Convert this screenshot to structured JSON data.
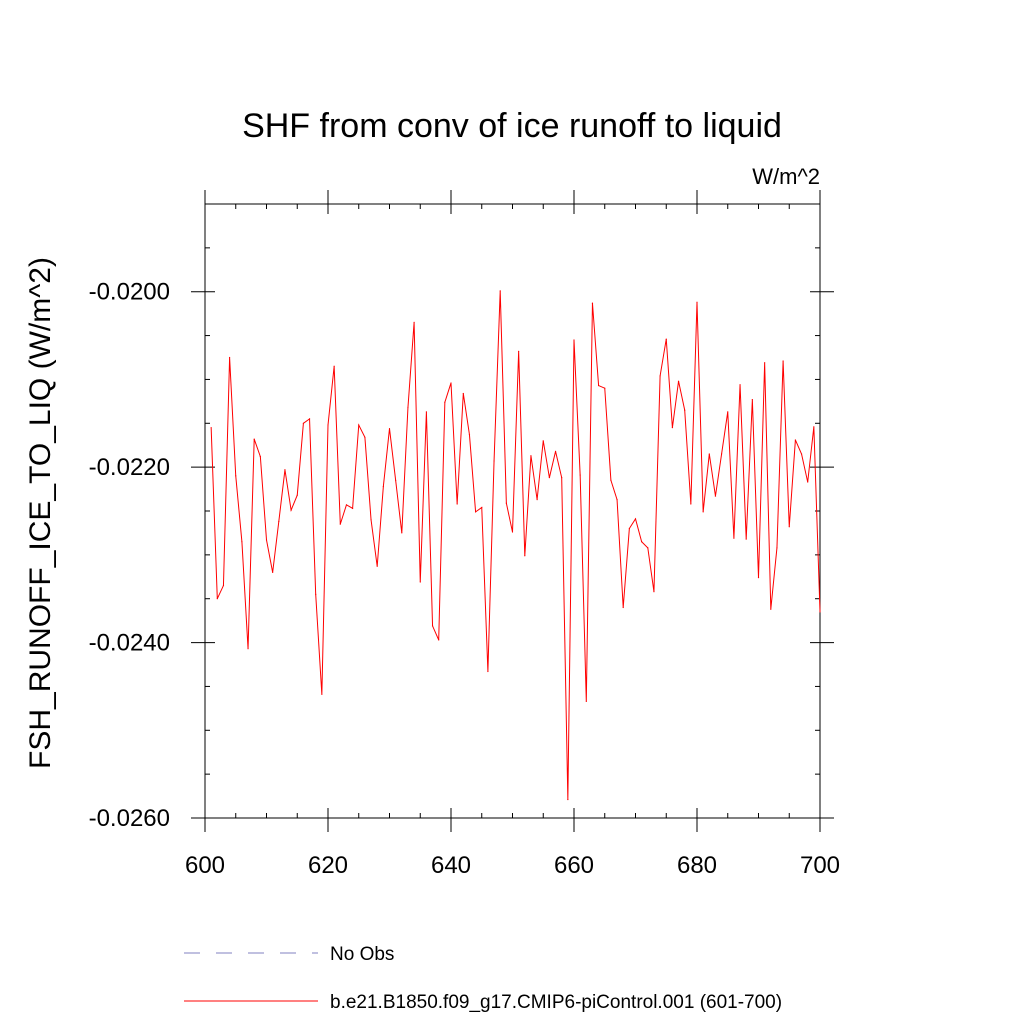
{
  "chart_data": {
    "type": "line",
    "title": "SHF from conv of ice runoff to liquid",
    "units": "W/m^2",
    "xlabel": "",
    "ylabel": "FSH_RUNOFF_ICE_TO_LIQ  (W/m^2)",
    "xlim": [
      600,
      700
    ],
    "ylim": [
      -0.026,
      -0.019
    ],
    "x_ticks": [
      600,
      620,
      640,
      660,
      680,
      700
    ],
    "x_tick_labels": [
      "600",
      "620",
      "640",
      "660",
      "680",
      "700"
    ],
    "x_minor_step": 5,
    "y_ticks": [
      -0.026,
      -0.024,
      -0.022,
      -0.02
    ],
    "y_tick_labels": [
      "-0.0260",
      "-0.0240",
      "-0.0220",
      "-0.0200"
    ],
    "y_minor_step": 0.0005,
    "grid": false,
    "legend_position": "bottom",
    "series": [
      {
        "name": "No Obs",
        "color": "#8080c0",
        "style": "dashed",
        "values": []
      },
      {
        "name": "b.e21.B1850.f09_g17.CMIP6-piControl.001 (601-700)",
        "color": "#ff0000",
        "style": "solid",
        "x": [
          601,
          602,
          603,
          604,
          605,
          606,
          607,
          608,
          609,
          610,
          611,
          612,
          613,
          614,
          615,
          616,
          617,
          618,
          619,
          620,
          621,
          622,
          623,
          624,
          625,
          626,
          627,
          628,
          629,
          630,
          631,
          632,
          633,
          634,
          635,
          636,
          637,
          638,
          639,
          640,
          641,
          642,
          643,
          644,
          645,
          646,
          647,
          648,
          649,
          650,
          651,
          652,
          653,
          654,
          655,
          656,
          657,
          658,
          659,
          660,
          661,
          662,
          663,
          664,
          665,
          666,
          667,
          668,
          669,
          670,
          671,
          672,
          673,
          674,
          675,
          676,
          677,
          678,
          679,
          680,
          681,
          682,
          683,
          684,
          685,
          686,
          687,
          688,
          689,
          690,
          691,
          692,
          693,
          694,
          695,
          696,
          697,
          698,
          699,
          700
        ],
        "values": [
          -0.02155,
          -0.0235,
          -0.02335,
          -0.02075,
          -0.0221,
          -0.02285,
          -0.02407,
          -0.02168,
          -0.02188,
          -0.02283,
          -0.0232,
          -0.02262,
          -0.02203,
          -0.02249,
          -0.02232,
          -0.0215,
          -0.02145,
          -0.02345,
          -0.02459,
          -0.02152,
          -0.02085,
          -0.02265,
          -0.02243,
          -0.02247,
          -0.02152,
          -0.02166,
          -0.0226,
          -0.02313,
          -0.02222,
          -0.02156,
          -0.02215,
          -0.02275,
          -0.02132,
          -0.02035,
          -0.02331,
          -0.02137,
          -0.02381,
          -0.02397,
          -0.02126,
          -0.02104,
          -0.02242,
          -0.02116,
          -0.02163,
          -0.02251,
          -0.02246,
          -0.02433,
          -0.02193,
          -0.01999,
          -0.02241,
          -0.02274,
          -0.02068,
          -0.02301,
          -0.02187,
          -0.02237,
          -0.0217,
          -0.02212,
          -0.02182,
          -0.02212,
          -0.02579,
          -0.02055,
          -0.02209,
          -0.02467,
          -0.02013,
          -0.02107,
          -0.0211,
          -0.02215,
          -0.02237,
          -0.0236,
          -0.0227,
          -0.02259,
          -0.02285,
          -0.02292,
          -0.02342,
          -0.02096,
          -0.02054,
          -0.02155,
          -0.02102,
          -0.02135,
          -0.02242,
          -0.02012,
          -0.02251,
          -0.02185,
          -0.02233,
          -0.02185,
          -0.02137,
          -0.02281,
          -0.02106,
          -0.02282,
          -0.02123,
          -0.02326,
          -0.02081,
          -0.02362,
          -0.02292,
          -0.02079,
          -0.02268,
          -0.02169,
          -0.02185,
          -0.02217,
          -0.02154,
          -0.02365
        ]
      }
    ]
  }
}
